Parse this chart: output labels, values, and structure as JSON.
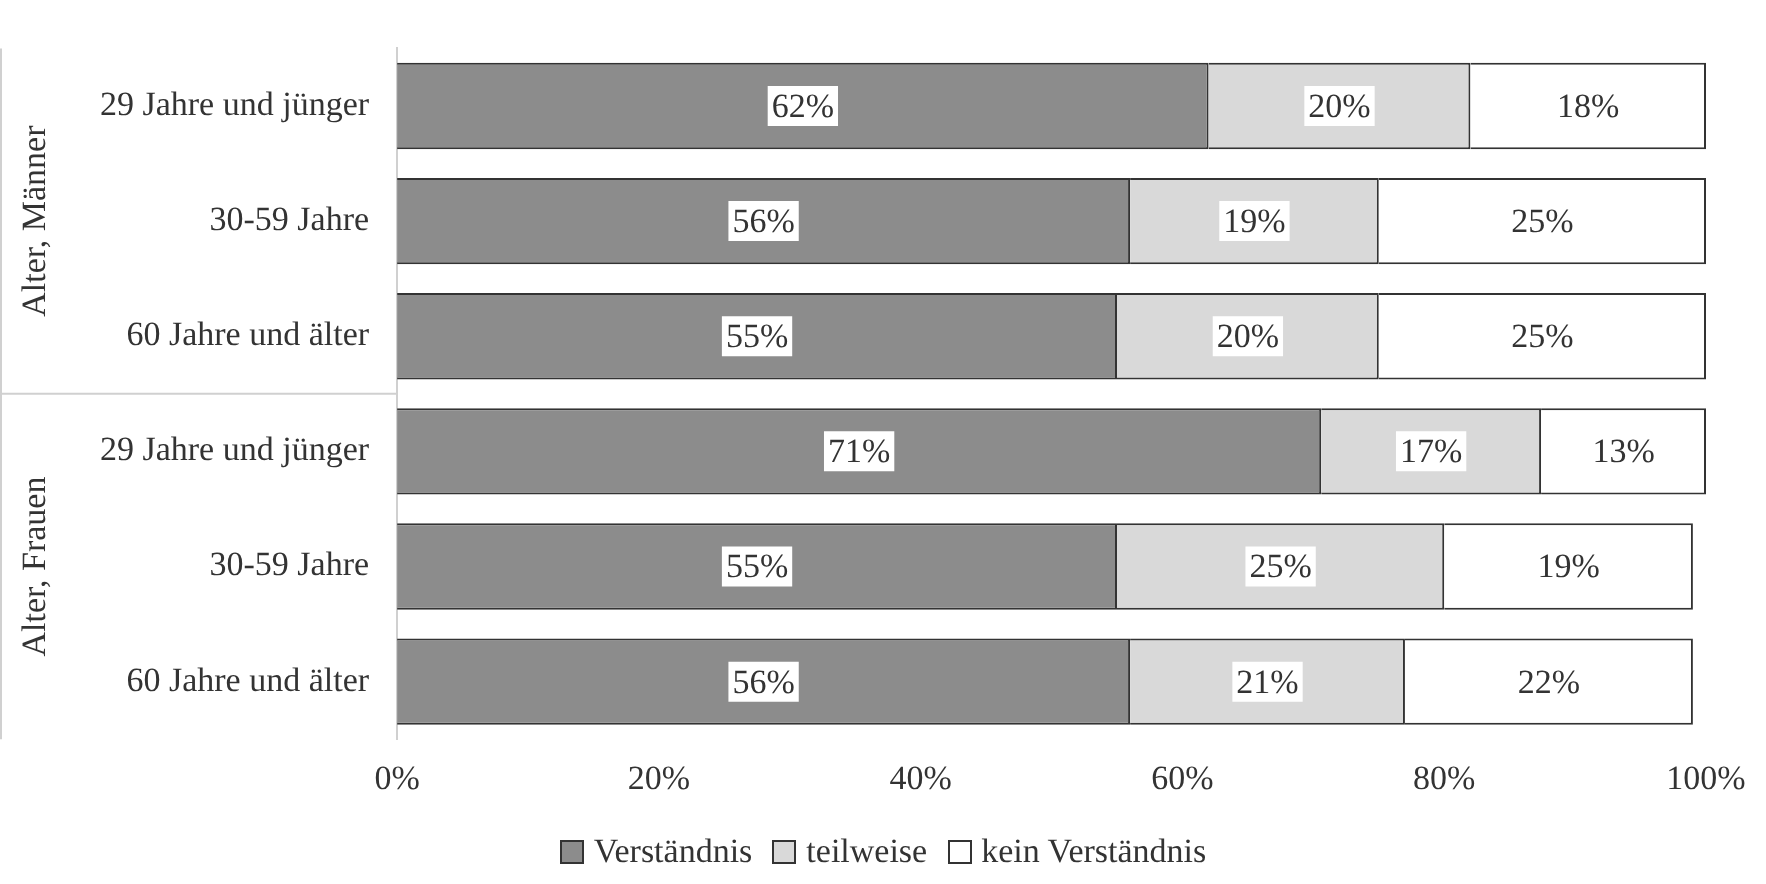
{
  "chart_data": {
    "type": "bar",
    "orientation": "horizontal",
    "stacked": true,
    "categories": [
      "29 Jahre und jünger",
      "30-59 Jahre",
      "60 Jahre und älter",
      "29 Jahre und jünger",
      "30-59 Jahre",
      "60 Jahre und älter"
    ],
    "series": [
      {
        "name": "Verständnis",
        "color": "#8c8c8c",
        "values": [
          62,
          56,
          55,
          70.6,
          55,
          56
        ],
        "value_labels": [
          "62%",
          "56%",
          "55%",
          "71%",
          "55%",
          "56%"
        ]
      },
      {
        "name": "teilweise",
        "color": "#d9d9d9",
        "values": [
          20,
          19,
          20,
          16.8,
          25,
          21
        ],
        "value_labels": [
          "20%",
          "19%",
          "20%",
          "17%",
          "25%",
          "21%"
        ]
      },
      {
        "name": "kein Verständnis",
        "color": "#ffffff",
        "values": [
          18,
          25,
          25,
          12.6,
          19,
          22
        ],
        "value_labels": [
          "18%",
          "25%",
          "25%",
          "13%",
          "19%",
          "22%"
        ]
      }
    ],
    "xlim": [
      0,
      100
    ],
    "xticks": [
      {
        "value": 0,
        "label": "0%"
      },
      {
        "value": 20,
        "label": "20%"
      },
      {
        "value": 40,
        "label": "40%"
      },
      {
        "value": 60,
        "label": "60%"
      },
      {
        "value": 80,
        "label": "80%"
      },
      {
        "value": 100,
        "label": "100%"
      }
    ],
    "annotations": [
      "Alter, Männer",
      "Alter, Frauen"
    ],
    "grid": false,
    "legend": "bottom"
  }
}
